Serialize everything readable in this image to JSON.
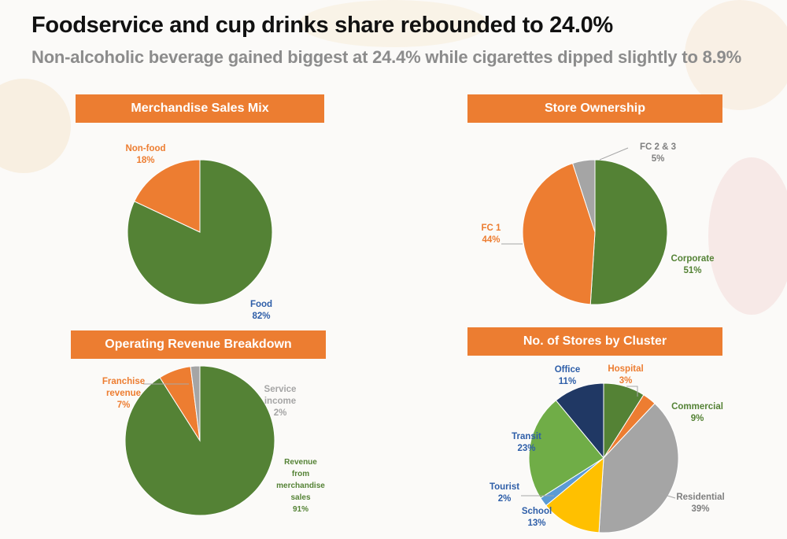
{
  "title": "Foodservice and cup drinks share rebounded to 24.0%",
  "subtitle": "Non-alcoholic beverage gained biggest at 24.4% while cigarettes dipped slightly to 8.9%",
  "chart_data": [
    {
      "type": "pie",
      "title": "Merchandise Sales Mix",
      "slices": [
        {
          "label": [
            "Food"
          ],
          "pct_label": "82%",
          "value": 82,
          "color": "#548235",
          "label_color": "#2e5ea8"
        },
        {
          "label": [
            "Non-food"
          ],
          "pct_label": "18%",
          "value": 18,
          "color": "#ed7d31",
          "label_color": "#ed7d31"
        }
      ]
    },
    {
      "type": "pie",
      "title": "Store Ownership",
      "slices": [
        {
          "label": [
            "Corporate"
          ],
          "pct_label": "51%",
          "value": 51,
          "color": "#548235",
          "label_color": "#548235"
        },
        {
          "label": [
            "FC 1"
          ],
          "pct_label": "44%",
          "value": 44,
          "color": "#ed7d31",
          "label_color": "#ed7d31"
        },
        {
          "label": [
            "FC 2 & 3"
          ],
          "pct_label": "5%",
          "value": 5,
          "color": "#a5a5a5",
          "label_color": "#7f7f7f"
        }
      ]
    },
    {
      "type": "pie",
      "title": "Operating Revenue Breakdown",
      "slices": [
        {
          "label": [
            "Revenue",
            "from",
            "merchandise",
            "sales"
          ],
          "pct_label": "91%",
          "value": 91,
          "color": "#548235",
          "label_color": "#548235"
        },
        {
          "label": [
            "Franchise",
            "revenue"
          ],
          "pct_label": "7%",
          "value": 7,
          "color": "#ed7d31",
          "label_color": "#ed7d31"
        },
        {
          "label": [
            "Service",
            "income"
          ],
          "pct_label": "2%",
          "value": 2,
          "color": "#a5a5a5",
          "label_color": "#a5a5a5"
        }
      ]
    },
    {
      "type": "pie",
      "title": "No. of Stores by Cluster",
      "slices": [
        {
          "label": [
            "Commercial"
          ],
          "pct_label": "9%",
          "value": 9,
          "color": "#548235",
          "label_color": "#548235"
        },
        {
          "label": [
            "Hospital"
          ],
          "pct_label": "3%",
          "value": 3,
          "color": "#ed7d31",
          "label_color": "#ed7d31"
        },
        {
          "label": [
            "Residential"
          ],
          "pct_label": "39%",
          "value": 39,
          "color": "#a5a5a5",
          "label_color": "#7f7f7f"
        },
        {
          "label": [
            "School"
          ],
          "pct_label": "13%",
          "value": 13,
          "color": "#ffc000",
          "label_color": "#2e5ea8"
        },
        {
          "label": [
            "Tourist"
          ],
          "pct_label": "2%",
          "value": 2,
          "color": "#5b9bd5",
          "label_color": "#2e5ea8"
        },
        {
          "label": [
            "Transit"
          ],
          "pct_label": "23%",
          "value": 23,
          "color": "#70ad47",
          "label_color": "#2e5ea8"
        },
        {
          "label": [
            "Office"
          ],
          "pct_label": "11%",
          "value": 11,
          "color": "#203864",
          "label_color": "#2e5ea8"
        }
      ]
    }
  ]
}
